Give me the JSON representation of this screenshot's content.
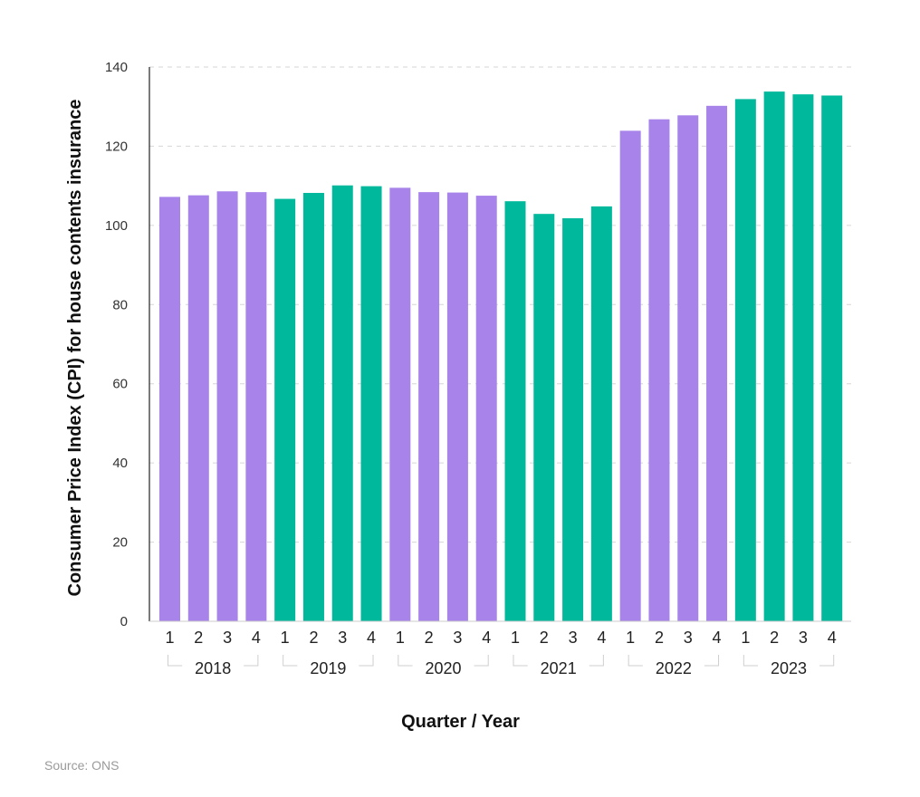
{
  "chart_data": {
    "type": "bar",
    "xlabel": "Quarter / Year",
    "ylabel": "Consumer Price Index (CPI) for house contents insurance",
    "ylim": [
      0,
      140
    ],
    "yticks": [
      0,
      20,
      40,
      60,
      80,
      100,
      120,
      140
    ],
    "grid": true,
    "years": [
      "2018",
      "2019",
      "2020",
      "2021",
      "2022",
      "2023"
    ],
    "quarters": [
      "1",
      "2",
      "3",
      "4"
    ],
    "categories": [
      "2018 Q1",
      "2018 Q2",
      "2018 Q3",
      "2018 Q4",
      "2019 Q1",
      "2019 Q2",
      "2019 Q3",
      "2019 Q4",
      "2020 Q1",
      "2020 Q2",
      "2020 Q3",
      "2020 Q4",
      "2021 Q1",
      "2021 Q2",
      "2021 Q3",
      "2021 Q4",
      "2022 Q1",
      "2022 Q2",
      "2022 Q3",
      "2022 Q4",
      "2023 Q1",
      "2023 Q2",
      "2023 Q3",
      "2023 Q4"
    ],
    "values": [
      107.2,
      107.6,
      108.6,
      108.4,
      106.7,
      108.2,
      110.1,
      109.9,
      109.5,
      108.4,
      108.3,
      107.5,
      106.1,
      102.9,
      101.8,
      104.8,
      123.9,
      126.8,
      127.8,
      130.2,
      131.9,
      133.8,
      133.1,
      132.8
    ],
    "colors": {
      "odd_year": "#a783ea",
      "even_year": "#00b89c"
    }
  },
  "source": "Source: ONS"
}
